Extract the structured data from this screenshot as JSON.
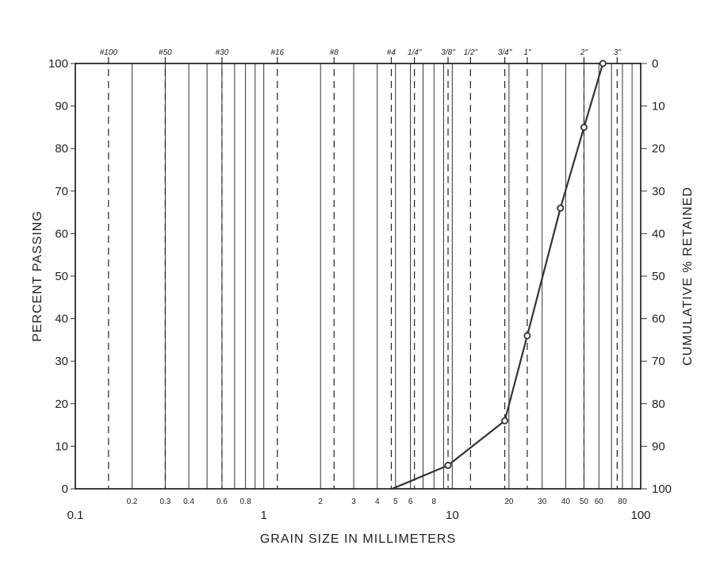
{
  "chart_data": {
    "type": "line",
    "title": "",
    "xlabel": "GRAIN SIZE IN MILLIMETERS",
    "ylabel": "PERCENT PASSING",
    "ylabel_right": "CUMULATIVE % RETAINED",
    "x_scale": "log",
    "xlim": [
      0.1,
      100
    ],
    "ylim": [
      0,
      100
    ],
    "grid": true,
    "x_major_ticks": [
      {
        "value": 0.1,
        "label": "0.1"
      },
      {
        "value": 1,
        "label": "1"
      },
      {
        "value": 10,
        "label": "10"
      },
      {
        "value": 100,
        "label": "100"
      }
    ],
    "x_minor_ticks": [
      {
        "value": 0.2,
        "label": "0.2"
      },
      {
        "value": 0.3,
        "label": "0.3"
      },
      {
        "value": 0.4,
        "label": "0.4"
      },
      {
        "value": 0.6,
        "label": "0.6"
      },
      {
        "value": 0.8,
        "label": "0.8"
      },
      {
        "value": 2,
        "label": "2"
      },
      {
        "value": 3,
        "label": "3"
      },
      {
        "value": 4,
        "label": "4"
      },
      {
        "value": 5,
        "label": "5"
      },
      {
        "value": 6,
        "label": "6"
      },
      {
        "value": 8,
        "label": "8"
      },
      {
        "value": 20,
        "label": "20"
      },
      {
        "value": 30,
        "label": "30"
      },
      {
        "value": 40,
        "label": "40"
      },
      {
        "value": 50,
        "label": "50"
      },
      {
        "value": 60,
        "label": "60"
      },
      {
        "value": 80,
        "label": "80"
      }
    ],
    "x_unlabeled_lines": [
      0.5,
      0.7,
      0.9,
      7,
      9,
      70,
      90
    ],
    "y_ticks_left": [
      "0",
      "10",
      "20",
      "30",
      "40",
      "50",
      "60",
      "70",
      "80",
      "90",
      "100"
    ],
    "y_ticks_right": [
      "100",
      "90",
      "80",
      "70",
      "60",
      "50",
      "40",
      "30",
      "20",
      "10",
      "0"
    ],
    "sieves": [
      {
        "label": "#100",
        "size_mm": 0.15
      },
      {
        "label": "#50",
        "size_mm": 0.3
      },
      {
        "label": "#30",
        "size_mm": 0.6
      },
      {
        "label": "#16",
        "size_mm": 1.18
      },
      {
        "label": "#8",
        "size_mm": 2.36
      },
      {
        "label": "#4",
        "size_mm": 4.75
      },
      {
        "label": "1/4\"",
        "size_mm": 6.3
      },
      {
        "label": "3/8\"",
        "size_mm": 9.5
      },
      {
        "label": "1/2\"",
        "size_mm": 12.5
      },
      {
        "label": "3/4\"",
        "size_mm": 19
      },
      {
        "label": "1\"",
        "size_mm": 25
      },
      {
        "label": "2\"",
        "size_mm": 50
      },
      {
        "label": "3\"",
        "size_mm": 75
      }
    ],
    "series": [
      {
        "x": [
          4.8,
          9.5,
          19,
          25,
          37.5,
          50,
          63
        ],
        "y": [
          0,
          5.5,
          16,
          36,
          66,
          85,
          100
        ],
        "color": "#333333"
      }
    ]
  }
}
